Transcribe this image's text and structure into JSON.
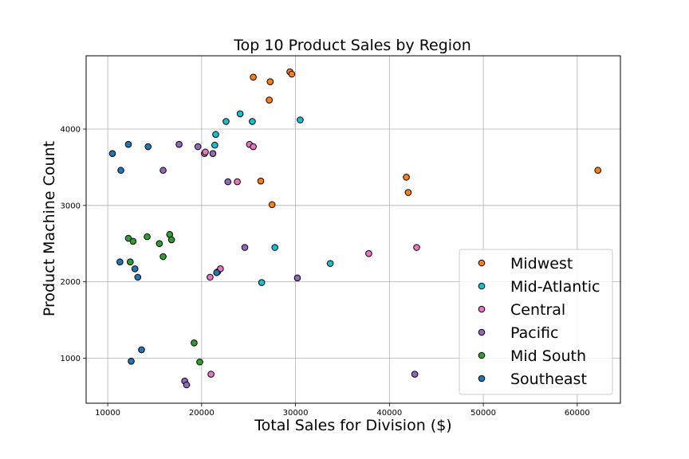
{
  "chart_data": {
    "type": "scatter",
    "title": "Top 10 Product Sales by Region",
    "xlabel": "Total Sales for Division ($)",
    "ylabel": "Product Machine Count",
    "xlim": [
      7700,
      64600
    ],
    "ylim": [
      410,
      4960
    ],
    "xticks": [
      10000,
      20000,
      30000,
      40000,
      50000,
      60000
    ],
    "yticks": [
      1000,
      2000,
      3000,
      4000
    ],
    "grid": true,
    "legend_position": "lower-right",
    "series": [
      {
        "name": "Midwest",
        "color": "#ff7f0e",
        "points": [
          {
            "x": 25500,
            "y": 4680
          },
          {
            "x": 27300,
            "y": 4620
          },
          {
            "x": 29400,
            "y": 4750
          },
          {
            "x": 29600,
            "y": 4720
          },
          {
            "x": 27200,
            "y": 4380
          },
          {
            "x": 26300,
            "y": 3320
          },
          {
            "x": 27500,
            "y": 3010
          },
          {
            "x": 41800,
            "y": 3370
          },
          {
            "x": 42000,
            "y": 3170
          },
          {
            "x": 62200,
            "y": 3460
          }
        ]
      },
      {
        "name": "Mid-Atlantic",
        "color": "#17becf",
        "points": [
          {
            "x": 22600,
            "y": 4100
          },
          {
            "x": 24100,
            "y": 4200
          },
          {
            "x": 25400,
            "y": 4100
          },
          {
            "x": 30500,
            "y": 4120
          },
          {
            "x": 21500,
            "y": 3930
          },
          {
            "x": 21400,
            "y": 3790
          },
          {
            "x": 21700,
            "y": 2130
          },
          {
            "x": 27800,
            "y": 2450
          },
          {
            "x": 26400,
            "y": 1990
          },
          {
            "x": 33700,
            "y": 2240
          }
        ]
      },
      {
        "name": "Central",
        "color": "#e377c2",
        "points": [
          {
            "x": 20300,
            "y": 3680
          },
          {
            "x": 25100,
            "y": 3800
          },
          {
            "x": 25500,
            "y": 3770
          },
          {
            "x": 23800,
            "y": 3310
          },
          {
            "x": 20900,
            "y": 2060
          },
          {
            "x": 22000,
            "y": 2170
          },
          {
            "x": 37800,
            "y": 2370
          },
          {
            "x": 42900,
            "y": 2450
          },
          {
            "x": 21000,
            "y": 790
          },
          {
            "x": 20400,
            "y": 3700
          }
        ]
      },
      {
        "name": "Pacific",
        "color": "#9467bd",
        "points": [
          {
            "x": 15900,
            "y": 3460
          },
          {
            "x": 17600,
            "y": 3800
          },
          {
            "x": 19600,
            "y": 3770
          },
          {
            "x": 21200,
            "y": 3680
          },
          {
            "x": 22800,
            "y": 3310
          },
          {
            "x": 24600,
            "y": 2450
          },
          {
            "x": 30200,
            "y": 2050
          },
          {
            "x": 18200,
            "y": 700
          },
          {
            "x": 18400,
            "y": 650
          },
          {
            "x": 42700,
            "y": 790
          }
        ]
      },
      {
        "name": "Mid South",
        "color": "#2ca02c",
        "points": [
          {
            "x": 12200,
            "y": 2570
          },
          {
            "x": 12700,
            "y": 2530
          },
          {
            "x": 14200,
            "y": 2590
          },
          {
            "x": 15500,
            "y": 2500
          },
          {
            "x": 16600,
            "y": 2620
          },
          {
            "x": 16800,
            "y": 2550
          },
          {
            "x": 12400,
            "y": 2260
          },
          {
            "x": 15900,
            "y": 2330
          },
          {
            "x": 19200,
            "y": 1200
          },
          {
            "x": 19800,
            "y": 950
          }
        ]
      },
      {
        "name": "Southeast",
        "color": "#1f77b4",
        "points": [
          {
            "x": 10500,
            "y": 3680
          },
          {
            "x": 12200,
            "y": 3800
          },
          {
            "x": 14300,
            "y": 3770
          },
          {
            "x": 11400,
            "y": 3460
          },
          {
            "x": 11300,
            "y": 2260
          },
          {
            "x": 12900,
            "y": 2170
          },
          {
            "x": 13200,
            "y": 2060
          },
          {
            "x": 13600,
            "y": 1110
          },
          {
            "x": 12500,
            "y": 960
          },
          {
            "x": 21600,
            "y": 2120
          }
        ]
      }
    ]
  }
}
